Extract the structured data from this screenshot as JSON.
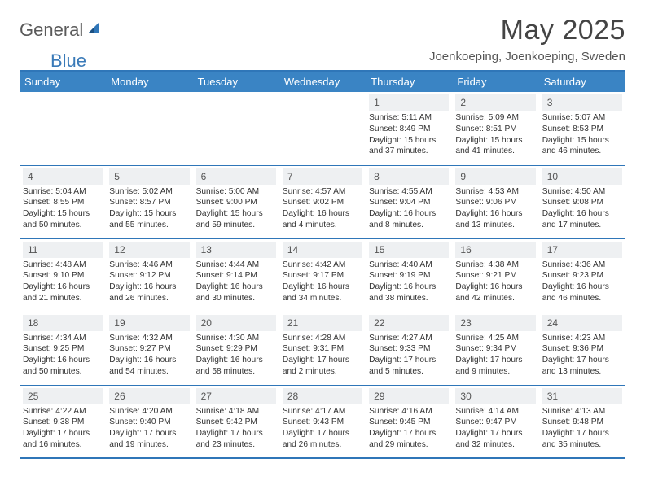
{
  "logo": {
    "general": "General",
    "blue": "Blue"
  },
  "title": "May 2025",
  "location": "Joenkoeping, Joenkoeping, Sweden",
  "colors": {
    "header_bg": "#3a84c4",
    "header_text": "#ffffff",
    "rule": "#2f76b8",
    "daynum_bg": "#eef0f2",
    "logo_blue": "#3a7ab8",
    "logo_gray": "#5a5a5a"
  },
  "weekdays": [
    "Sunday",
    "Monday",
    "Tuesday",
    "Wednesday",
    "Thursday",
    "Friday",
    "Saturday"
  ],
  "weeks": [
    [
      {
        "n": "",
        "sr": "",
        "ss": "",
        "dl": ""
      },
      {
        "n": "",
        "sr": "",
        "ss": "",
        "dl": ""
      },
      {
        "n": "",
        "sr": "",
        "ss": "",
        "dl": ""
      },
      {
        "n": "",
        "sr": "",
        "ss": "",
        "dl": ""
      },
      {
        "n": "1",
        "sr": "Sunrise: 5:11 AM",
        "ss": "Sunset: 8:49 PM",
        "dl": "Daylight: 15 hours and 37 minutes."
      },
      {
        "n": "2",
        "sr": "Sunrise: 5:09 AM",
        "ss": "Sunset: 8:51 PM",
        "dl": "Daylight: 15 hours and 41 minutes."
      },
      {
        "n": "3",
        "sr": "Sunrise: 5:07 AM",
        "ss": "Sunset: 8:53 PM",
        "dl": "Daylight: 15 hours and 46 minutes."
      }
    ],
    [
      {
        "n": "4",
        "sr": "Sunrise: 5:04 AM",
        "ss": "Sunset: 8:55 PM",
        "dl": "Daylight: 15 hours and 50 minutes."
      },
      {
        "n": "5",
        "sr": "Sunrise: 5:02 AM",
        "ss": "Sunset: 8:57 PM",
        "dl": "Daylight: 15 hours and 55 minutes."
      },
      {
        "n": "6",
        "sr": "Sunrise: 5:00 AM",
        "ss": "Sunset: 9:00 PM",
        "dl": "Daylight: 15 hours and 59 minutes."
      },
      {
        "n": "7",
        "sr": "Sunrise: 4:57 AM",
        "ss": "Sunset: 9:02 PM",
        "dl": "Daylight: 16 hours and 4 minutes."
      },
      {
        "n": "8",
        "sr": "Sunrise: 4:55 AM",
        "ss": "Sunset: 9:04 PM",
        "dl": "Daylight: 16 hours and 8 minutes."
      },
      {
        "n": "9",
        "sr": "Sunrise: 4:53 AM",
        "ss": "Sunset: 9:06 PM",
        "dl": "Daylight: 16 hours and 13 minutes."
      },
      {
        "n": "10",
        "sr": "Sunrise: 4:50 AM",
        "ss": "Sunset: 9:08 PM",
        "dl": "Daylight: 16 hours and 17 minutes."
      }
    ],
    [
      {
        "n": "11",
        "sr": "Sunrise: 4:48 AM",
        "ss": "Sunset: 9:10 PM",
        "dl": "Daylight: 16 hours and 21 minutes."
      },
      {
        "n": "12",
        "sr": "Sunrise: 4:46 AM",
        "ss": "Sunset: 9:12 PM",
        "dl": "Daylight: 16 hours and 26 minutes."
      },
      {
        "n": "13",
        "sr": "Sunrise: 4:44 AM",
        "ss": "Sunset: 9:14 PM",
        "dl": "Daylight: 16 hours and 30 minutes."
      },
      {
        "n": "14",
        "sr": "Sunrise: 4:42 AM",
        "ss": "Sunset: 9:17 PM",
        "dl": "Daylight: 16 hours and 34 minutes."
      },
      {
        "n": "15",
        "sr": "Sunrise: 4:40 AM",
        "ss": "Sunset: 9:19 PM",
        "dl": "Daylight: 16 hours and 38 minutes."
      },
      {
        "n": "16",
        "sr": "Sunrise: 4:38 AM",
        "ss": "Sunset: 9:21 PM",
        "dl": "Daylight: 16 hours and 42 minutes."
      },
      {
        "n": "17",
        "sr": "Sunrise: 4:36 AM",
        "ss": "Sunset: 9:23 PM",
        "dl": "Daylight: 16 hours and 46 minutes."
      }
    ],
    [
      {
        "n": "18",
        "sr": "Sunrise: 4:34 AM",
        "ss": "Sunset: 9:25 PM",
        "dl": "Daylight: 16 hours and 50 minutes."
      },
      {
        "n": "19",
        "sr": "Sunrise: 4:32 AM",
        "ss": "Sunset: 9:27 PM",
        "dl": "Daylight: 16 hours and 54 minutes."
      },
      {
        "n": "20",
        "sr": "Sunrise: 4:30 AM",
        "ss": "Sunset: 9:29 PM",
        "dl": "Daylight: 16 hours and 58 minutes."
      },
      {
        "n": "21",
        "sr": "Sunrise: 4:28 AM",
        "ss": "Sunset: 9:31 PM",
        "dl": "Daylight: 17 hours and 2 minutes."
      },
      {
        "n": "22",
        "sr": "Sunrise: 4:27 AM",
        "ss": "Sunset: 9:33 PM",
        "dl": "Daylight: 17 hours and 5 minutes."
      },
      {
        "n": "23",
        "sr": "Sunrise: 4:25 AM",
        "ss": "Sunset: 9:34 PM",
        "dl": "Daylight: 17 hours and 9 minutes."
      },
      {
        "n": "24",
        "sr": "Sunrise: 4:23 AM",
        "ss": "Sunset: 9:36 PM",
        "dl": "Daylight: 17 hours and 13 minutes."
      }
    ],
    [
      {
        "n": "25",
        "sr": "Sunrise: 4:22 AM",
        "ss": "Sunset: 9:38 PM",
        "dl": "Daylight: 17 hours and 16 minutes."
      },
      {
        "n": "26",
        "sr": "Sunrise: 4:20 AM",
        "ss": "Sunset: 9:40 PM",
        "dl": "Daylight: 17 hours and 19 minutes."
      },
      {
        "n": "27",
        "sr": "Sunrise: 4:18 AM",
        "ss": "Sunset: 9:42 PM",
        "dl": "Daylight: 17 hours and 23 minutes."
      },
      {
        "n": "28",
        "sr": "Sunrise: 4:17 AM",
        "ss": "Sunset: 9:43 PM",
        "dl": "Daylight: 17 hours and 26 minutes."
      },
      {
        "n": "29",
        "sr": "Sunrise: 4:16 AM",
        "ss": "Sunset: 9:45 PM",
        "dl": "Daylight: 17 hours and 29 minutes."
      },
      {
        "n": "30",
        "sr": "Sunrise: 4:14 AM",
        "ss": "Sunset: 9:47 PM",
        "dl": "Daylight: 17 hours and 32 minutes."
      },
      {
        "n": "31",
        "sr": "Sunrise: 4:13 AM",
        "ss": "Sunset: 9:48 PM",
        "dl": "Daylight: 17 hours and 35 minutes."
      }
    ]
  ]
}
